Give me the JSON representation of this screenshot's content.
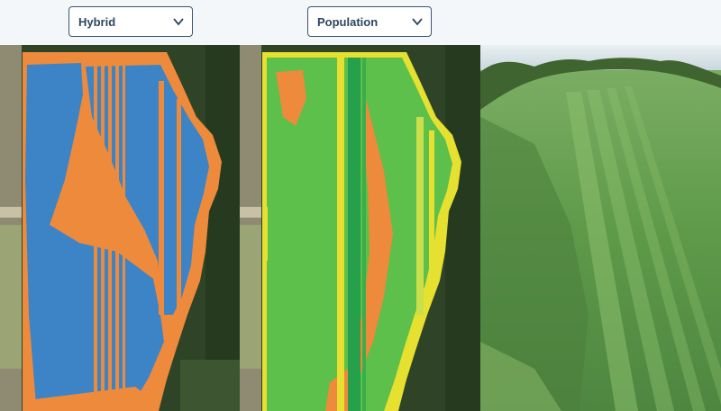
{
  "toolbar": {
    "hybrid_select": {
      "selected": "Hybrid",
      "icon": "chevron-down-icon"
    },
    "population_select": {
      "selected": "Population",
      "icon": "chevron-down-icon"
    }
  },
  "colors": {
    "background": "#f3f7fa",
    "hybrid_a": "#3d84c6",
    "hybrid_b": "#ee8a3c",
    "population_high": "#26a04a",
    "population_mid": "#5cc04a",
    "population_low": "#e6e030",
    "population_lowest": "#ee8a3c",
    "field_green": "#5f9a4a"
  },
  "panels": [
    {
      "name": "hybrid-map"
    },
    {
      "name": "population-map"
    },
    {
      "name": "aerial-field-photo"
    }
  ]
}
